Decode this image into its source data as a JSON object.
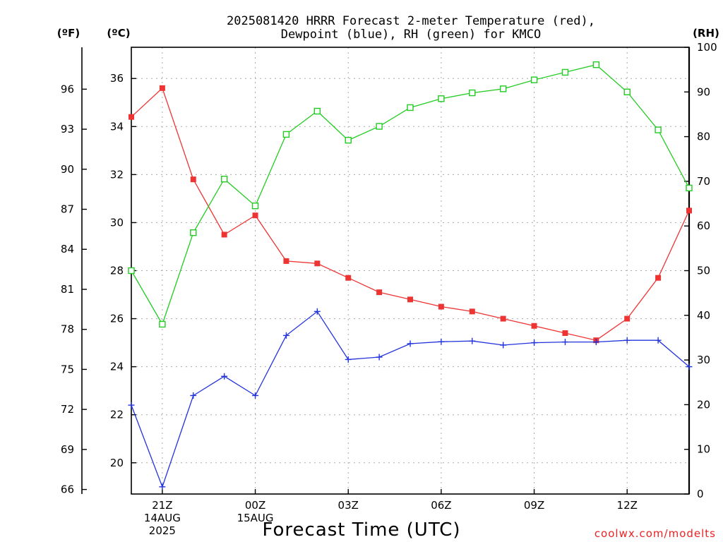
{
  "chart_data": {
    "type": "line",
    "title_lines": [
      "2025081420 HRRR Forecast 2-meter Temperature (red),",
      "Dewpoint (blue), RH (green) for KMCO"
    ],
    "xlabel": "Forecast Time (UTC)",
    "credit": "coolwx.com/modelts",
    "units": {
      "fahrenheit": "(ºF)",
      "celsius": "(ºC)",
      "rh": "(RH)"
    },
    "x_hours": [
      20,
      21,
      22,
      23,
      24,
      25,
      26,
      27,
      28,
      29,
      30,
      31,
      32,
      33,
      34,
      35,
      36,
      37,
      38
    ],
    "x_range": [
      20,
      38
    ],
    "x_ticks": [
      {
        "hour": 21,
        "lines": [
          "21Z",
          "14AUG",
          "2025"
        ]
      },
      {
        "hour": 24,
        "lines": [
          "00Z",
          "15AUG"
        ]
      },
      {
        "hour": 27,
        "lines": [
          "03Z"
        ]
      },
      {
        "hour": 30,
        "lines": [
          "06Z"
        ]
      },
      {
        "hour": 33,
        "lines": [
          "09Z"
        ]
      },
      {
        "hour": 36,
        "lines": [
          "12Z"
        ]
      }
    ],
    "celsius_axis": {
      "range": [
        18.7,
        37.3
      ],
      "ticks": [
        "20",
        "22",
        "24",
        "26",
        "28",
        "30",
        "32",
        "34",
        "36"
      ]
    },
    "fahrenheit_axis": {
      "ticks": [
        "66",
        "69",
        "72",
        "75",
        "78",
        "81",
        "84",
        "87",
        "90",
        "93",
        "96"
      ]
    },
    "rh_axis": {
      "range": [
        0,
        100
      ],
      "ticks": [
        "0",
        "10",
        "20",
        "30",
        "40",
        "50",
        "60",
        "70",
        "80",
        "90",
        "100"
      ]
    },
    "grid": true,
    "series": [
      {
        "color": "#ee3333",
        "marker": "filled-square",
        "axis": "celsius",
        "values": [
          34.4,
          35.6,
          31.8,
          29.5,
          30.3,
          28.4,
          28.3,
          27.7,
          27.1,
          26.8,
          26.5,
          26.3,
          26.0,
          25.7,
          25.4,
          25.1,
          26.0,
          27.7,
          30.5
        ]
      },
      {
        "color": "#2233dd",
        "marker": "plus",
        "axis": "celsius",
        "values": [
          22.4,
          19.0,
          22.8,
          23.6,
          22.8,
          25.3,
          26.3,
          24.3,
          24.4,
          24.96,
          25.04,
          25.07,
          24.9,
          25.0,
          25.03,
          25.03,
          25.1,
          25.1,
          24.0
        ]
      },
      {
        "color": "#22cc22",
        "marker": "open-square",
        "axis": "rh",
        "values": [
          50,
          38,
          58.5,
          70.5,
          64.5,
          80.5,
          85.7,
          79.2,
          82.3,
          86.5,
          88.5,
          89.8,
          90.7,
          92.7,
          94.4,
          96.1,
          90.0,
          81.5,
          68.5
        ]
      }
    ]
  }
}
